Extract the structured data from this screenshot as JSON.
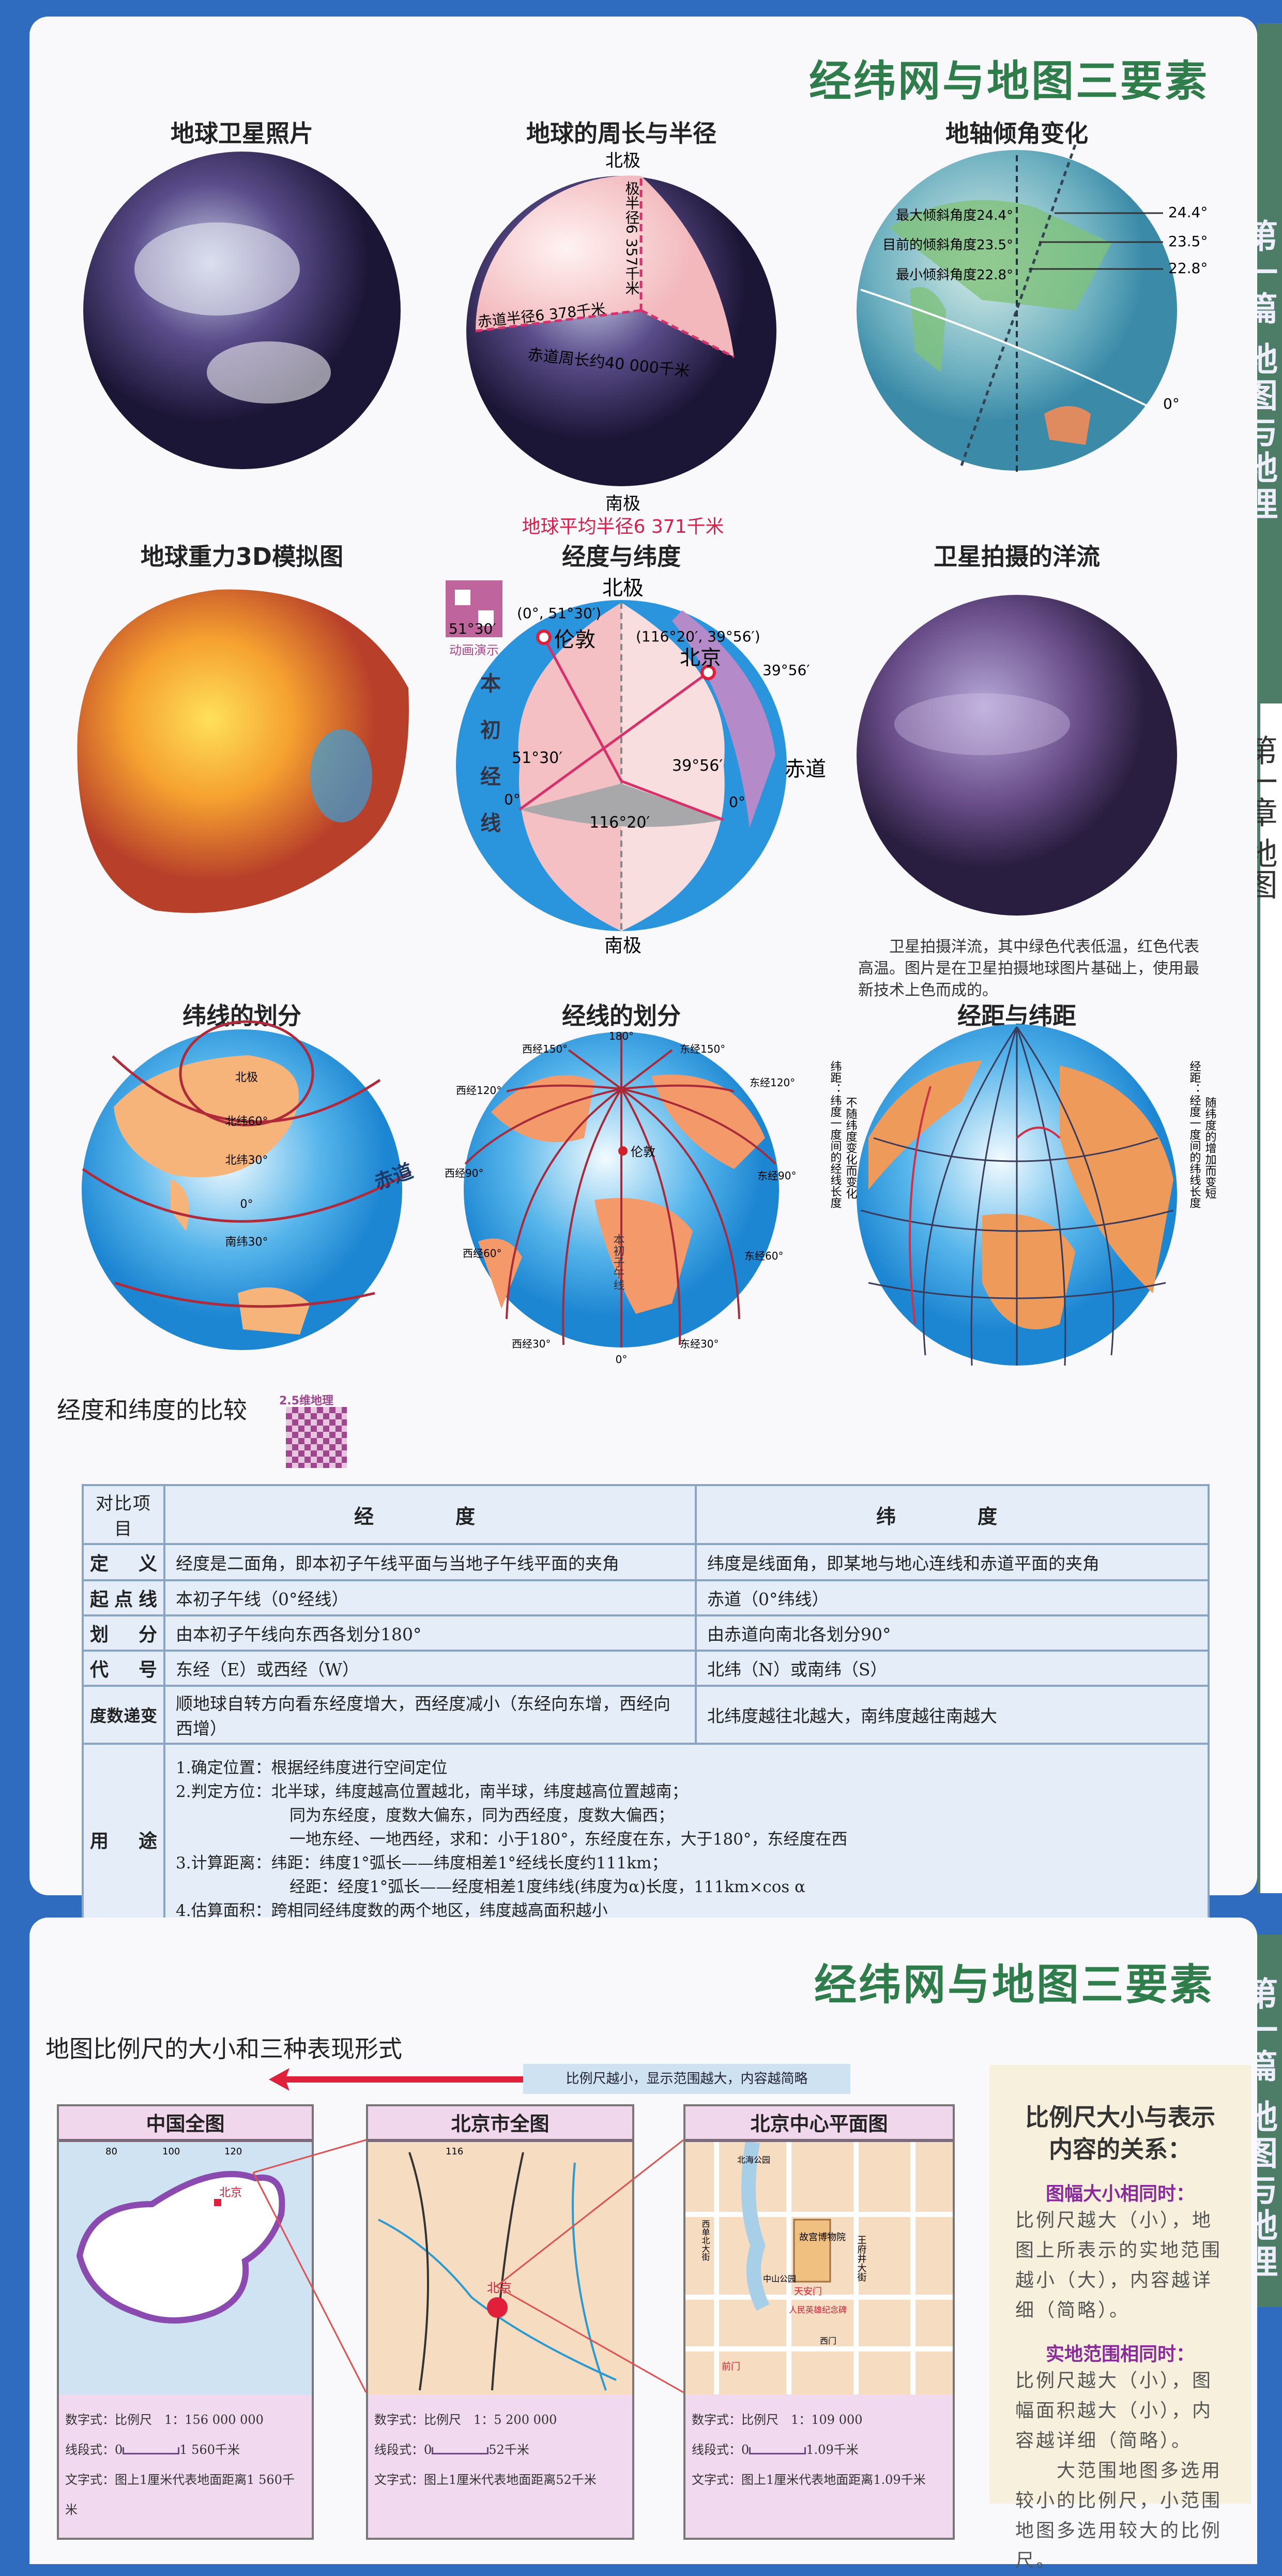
{
  "colors": {
    "frame": "#2f6cbf",
    "title_green": "#2e7d4a",
    "tab_green": "#4d7d66",
    "accent_red": "#d8204a",
    "table_bg": "#e5eef8"
  },
  "side_tabs": {
    "top_green": "第一篇 地图与地理",
    "top_white": "第一章 地图",
    "bottom_green": "第一篇 地图与地理"
  },
  "page1": {
    "title": "经纬网与地图三要素",
    "globes": [
      {
        "title": "地球卫星照片"
      },
      {
        "title": "地球的周长与半径",
        "labels": {
          "north": "北极",
          "south": "南极",
          "polar": "极半径6 357千米",
          "eq_radius": "赤道半径6 378千米",
          "circ": "赤道周长约40 000千米",
          "mean": "地球平均半径6 371千米"
        }
      },
      {
        "title": "地轴倾角变化",
        "labels": {
          "max": "最大倾斜角度24.4°",
          "cur": "目前的倾斜角度23.5°",
          "min": "最小倾斜角度22.8°",
          "v1": "24.4°",
          "v2": "23.5°",
          "v3": "22.8°",
          "eq": "0°"
        }
      },
      {
        "title": "地球重力3D模拟图",
        "qr_label": "动画演示"
      },
      {
        "title": "经度与纬度",
        "labels": {
          "north": "北极",
          "south": "南极",
          "london": "伦敦",
          "beijing": "北京",
          "london_coord": "(0°, 51°30′)",
          "beijing_coord": "(116°20′, 39°56′)",
          "lat_l": "51°30′",
          "lat_l2": "51°30′",
          "lat_b": "39°56′",
          "lat_b2": "39°56′",
          "lon": "116°20′",
          "eq": "赤道",
          "zero1": "0°",
          "zero2": "0°",
          "prime": "本初经线"
        }
      },
      {
        "title": "卫星拍摄的洋流",
        "caption": "卫星拍摄洋流，其中绿色代表低温，红色代表高温。图片是在卫星拍摄地球图片基础上，使用最新技术上色而成的。"
      },
      {
        "title": "纬线的划分",
        "labels": {
          "pole": "北极",
          "n60": "北纬60°",
          "n30": "北纬30°",
          "eq": "赤道",
          "zero": "0°",
          "s30": "南纬30°"
        }
      },
      {
        "title": "经线的划分",
        "labels": {
          "l180": "180°",
          "w150": "西经150°",
          "e150": "东经150°",
          "w120": "西经120°",
          "e120": "东经120°",
          "w90": "西经90°",
          "e90": "东经90°",
          "w60": "西经60°",
          "e60": "东经60°",
          "w30": "西经30°",
          "e30": "东经30°",
          "zero": "0°",
          "london": "伦敦",
          "prime": "本初子午线"
        }
      },
      {
        "title": "经距与纬距",
        "labels": {
          "lat_dist": "纬距：纬度一度间的经线长度",
          "lat_note": "不随纬度变化而变化",
          "lon_dist": "经距：经度一度间的纬线长度",
          "lon_note": "随纬度的增加而变短"
        }
      }
    ],
    "comparison": {
      "title": "经度和纬度的比较",
      "qr_label": "2.5维地理",
      "headers": [
        "对比项目",
        "经　度",
        "纬　度"
      ],
      "rows": [
        {
          "item": "定义",
          "lon": "经度是二面角，即本初子午线平面与当地子午线平面的夹角",
          "lat": "纬度是线面角，即某地与地心连线和赤道平面的夹角"
        },
        {
          "item": "起点线",
          "lon": "本初子午线（0°经线）",
          "lat": "赤道（0°纬线）"
        },
        {
          "item": "划分",
          "lon": "由本初子午线向东西各划分180°",
          "lat": "由赤道向南北各划分90°"
        },
        {
          "item": "代号",
          "lon": "东经（E）或西经（W）",
          "lat": "北纬（N）或南纬（S）"
        },
        {
          "item": "度数递变",
          "lon": "顺地球自转方向看东经度增大，西经度减小（东经向东增，西经向西增）",
          "lat": "北纬度越往北越大，南纬度越往南越大"
        }
      ],
      "usage": {
        "item": "用途",
        "lines": [
          "1.确定位置：根据经纬度进行空间定位",
          "2.判定方位：北半球，纬度越高位置越北，南半球，纬度越高位置越南；",
          "同为东经度，度数大偏东，同为西经度，度数大偏西；",
          "一地东经、一地西经，求和：小于180°，东经度在东，大于180°，东经度在西",
          "3.计算距离：纬距：纬度1°弧长——纬度相差1°经线长度约111km；",
          "经距：经度1°弧长——经度相差1度纬线(纬度为α)长度，111km×cos α",
          "4.估算面积：跨相同经纬度数的两个地区，纬度越高面积越小"
        ]
      }
    }
  },
  "page2": {
    "title": "经纬网与地图三要素",
    "section_title": "地图比例尺的大小和三种表现形式",
    "arrow_label": "比例尺越小，显示范围越大，内容越简略",
    "maps": [
      {
        "title": "中国全图",
        "marker": "北京",
        "ticks": [
          "80",
          "100",
          "120"
        ],
        "numeric_label": "数字式：",
        "numeric": "比例尺　1：156 000 000",
        "line_label": "线段式：",
        "line_zero": "0",
        "line_end": "1 560千米",
        "text_label": "文字式：",
        "text": "图上1厘米代表地面距离1 560千米"
      },
      {
        "title": "北京市全图",
        "marker": "北京",
        "ticks": [
          "116"
        ],
        "numeric_label": "数字式：",
        "numeric": "比例尺　1：5 200 000",
        "line_label": "线段式：",
        "line_zero": "0",
        "line_end": "52千米",
        "text_label": "文字式：",
        "text": "图上1厘米代表地面距离52千米"
      },
      {
        "title": "北京中心平面图",
        "places": [
          "故宫博物院",
          "王府井大街",
          "天安门",
          "中山公园",
          "北海公园",
          "西单北大街",
          "人民英雄纪念碑",
          "西门",
          "前门"
        ],
        "numeric_label": "数字式：",
        "numeric": "比例尺　1：109 000",
        "line_label": "线段式：",
        "line_zero": "0",
        "line_end": "1.09千米",
        "text_label": "文字式：",
        "text": "图上1厘米代表地面距离1.09千米"
      }
    ],
    "relation": {
      "title": "比例尺大小与表示内容的关系：",
      "sub1": "图幅大小相同时：",
      "p1": "比例尺越大（小），地图上所表示的实地范围越小（大），内容越详细（简略）。",
      "sub2": "实地范围相同时：",
      "p2": "比例尺越大（小），图幅面积越大（小），内容越详细（简略）。",
      "p3": "　　大范围地图多选用较小的比例尺，小范围地图多选用较大的比例尺。"
    }
  }
}
